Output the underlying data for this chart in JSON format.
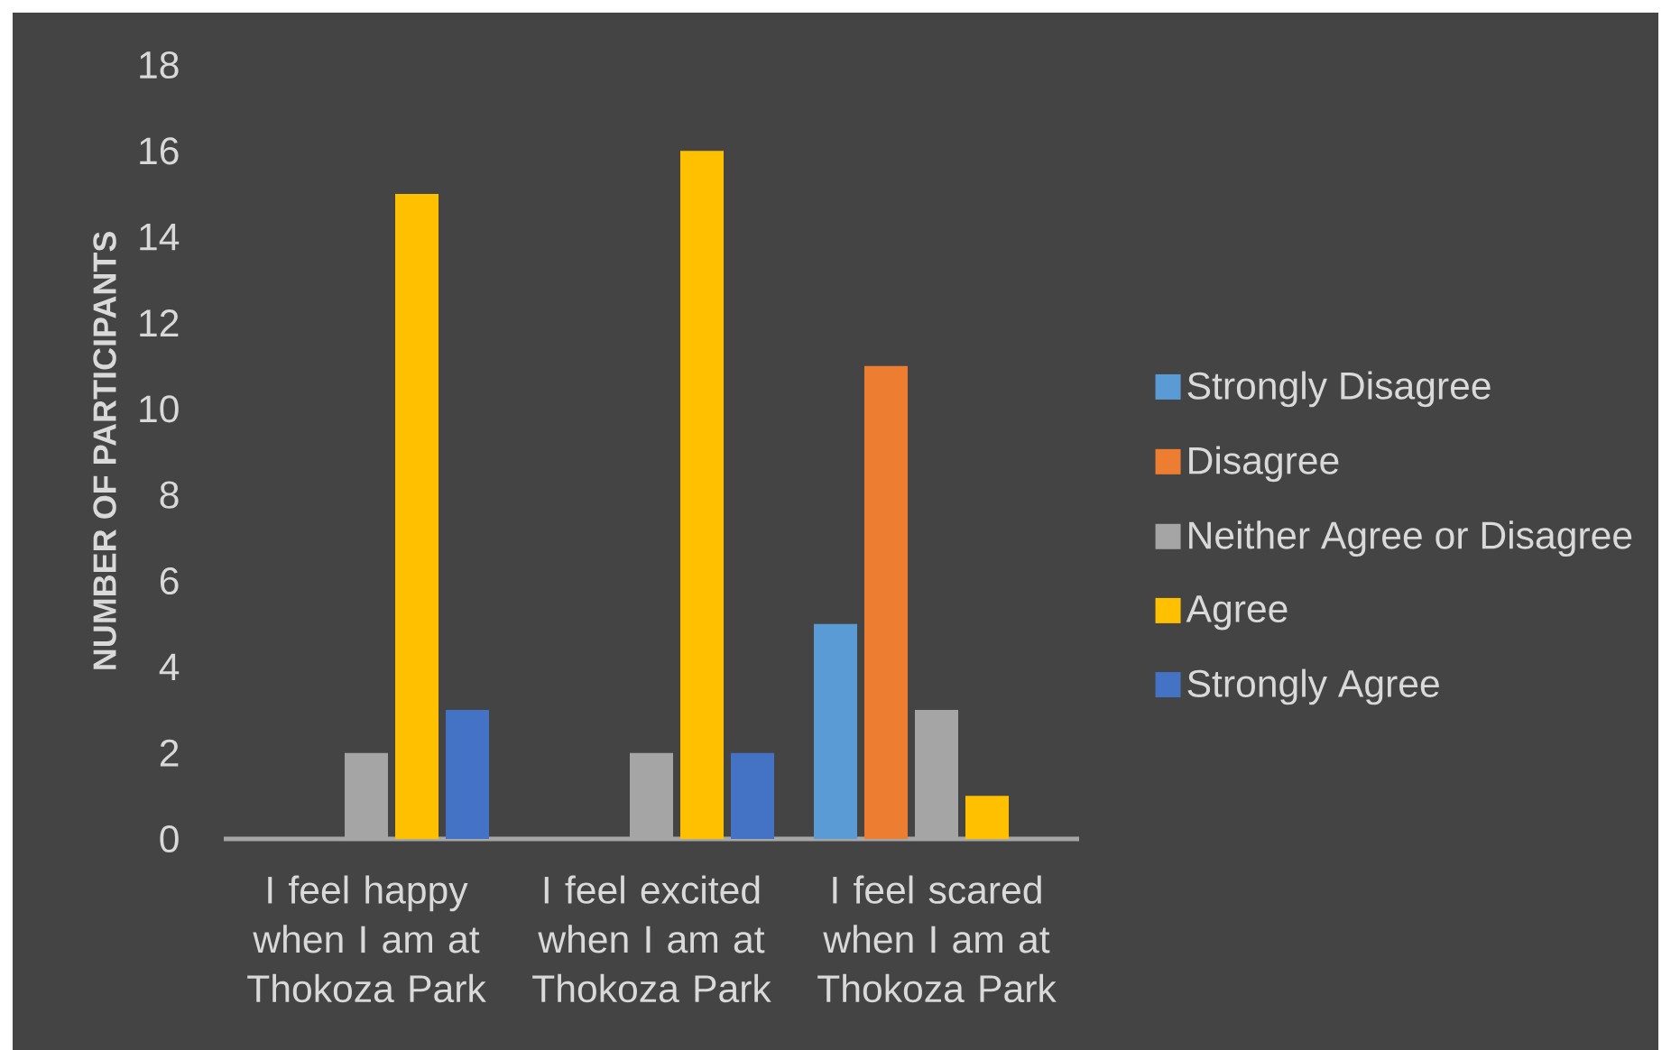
{
  "chart_data": {
    "type": "bar",
    "ylabel": "NUMBER OF PARTICIPANTS",
    "categories": [
      "I feel happy when I am at Thokoza Park",
      "I feel excited when I am at Thokoza Park",
      "I feel scared when I am at Thokoza Park"
    ],
    "series": [
      {
        "name": "Strongly Disagree",
        "color": "#5b9bd5",
        "values": [
          0,
          0,
          5
        ]
      },
      {
        "name": "Disagree",
        "color": "#ed7d31",
        "values": [
          0,
          0,
          11
        ]
      },
      {
        "name": "Neither Agree or Disagree",
        "color": "#a5a5a5",
        "values": [
          2,
          2,
          3
        ]
      },
      {
        "name": "Agree",
        "color": "#ffc000",
        "values": [
          15,
          16,
          1
        ]
      },
      {
        "name": "Strongly Agree",
        "color": "#4472c4",
        "values": [
          3,
          2,
          0
        ]
      }
    ],
    "ylim": [
      0,
      18
    ],
    "yticks": [
      0,
      2,
      4,
      6,
      8,
      10,
      12,
      14,
      16,
      18
    ],
    "legend": "right"
  }
}
